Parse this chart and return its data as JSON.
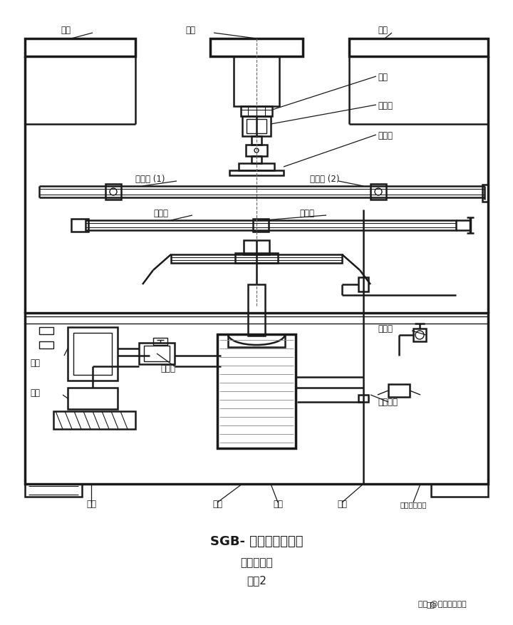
{
  "bg_color": "#ffffff",
  "line_color": "#1a1a1a",
  "title1": "SGB- 卧型抗折试验机",
  "title2": "机机结构图",
  "title3": "附图2",
  "watermark": "知乎 @苏州科准测控",
  "labels": {
    "gaiban_left": "盖板",
    "lizhu": "立柱",
    "gaiban_right": "盖板",
    "luoshuan": "螺栓",
    "chuanganqi": "传感器",
    "shangya": "上压钢",
    "pinghengzhen1": "平衡镇 (1)",
    "pinghengzhen2": "平衡镇 (2)",
    "zhichengzhu": "支承柱",
    "dingweikuai": "定位块",
    "dianji": "电机",
    "youbeng": "油泵",
    "diancifa": "电磁阀",
    "tiaojiefa": "调节阀",
    "xianyukaiguan": "限位开关",
    "yousuan": "油筒",
    "huosai": "活塞",
    "yougang": "油缸",
    "lagan": "拉杆",
    "dianlubandishibian": "电路板数显板"
  }
}
